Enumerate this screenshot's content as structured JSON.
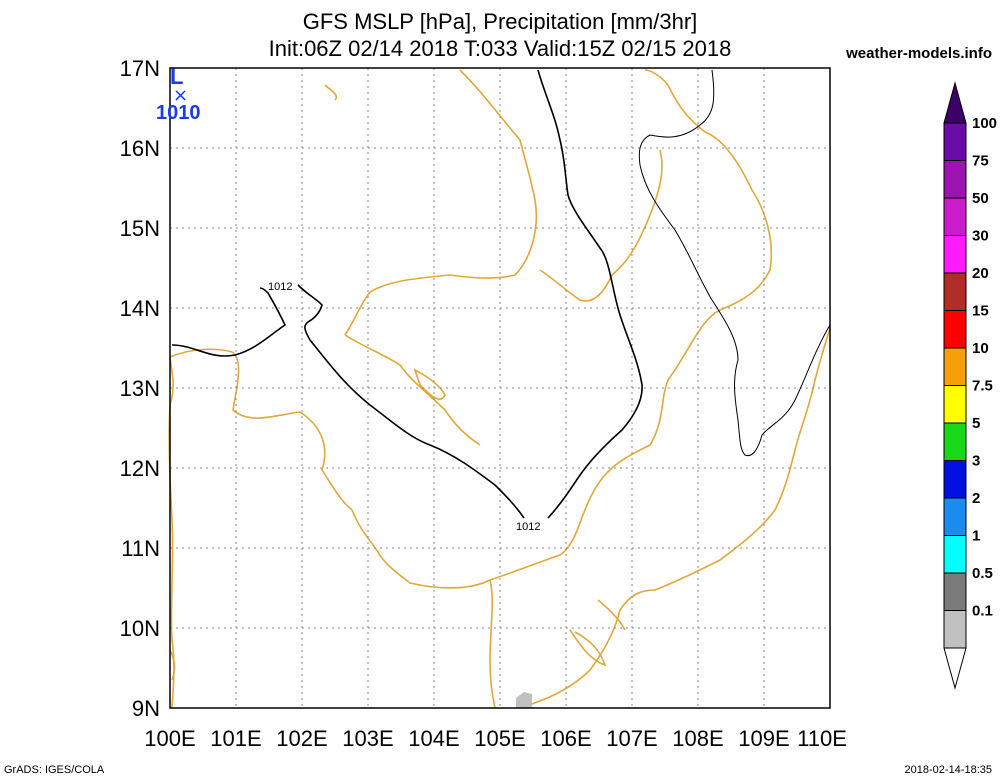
{
  "title_line1": "GFS MSLP [hPa], Precipitation [mm/3hr]",
  "title_line2": "Init:06Z 02/14 2018 T:033 Valid:15Z 02/15 2018",
  "site": "weather-models.info",
  "footer_left": "GrADS: IGES/COLA",
  "footer_right": "2018-02-14-18:35",
  "lat_labels": [
    "17N",
    "16N",
    "15N",
    "14N",
    "13N",
    "12N",
    "11N",
    "10N",
    "9N"
  ],
  "lon_labels": [
    "100E",
    "101E",
    "102E",
    "103E",
    "104E",
    "105E",
    "106E",
    "107E",
    "108E",
    "109E",
    "110E"
  ],
  "isobars": [
    {
      "label": "1012",
      "side": "west"
    },
    {
      "label": "1012",
      "side": "east"
    }
  ],
  "low_center": {
    "symbol": "L",
    "marker": "×",
    "value": "1010",
    "color": "#1a3be6"
  },
  "colorbar": [
    {
      "label": "100",
      "color": "#6a0da8"
    },
    {
      "label": "75",
      "color": "#9b14b0"
    },
    {
      "label": "50",
      "color": "#cc1bcc"
    },
    {
      "label": "30",
      "color": "#ff1aff"
    },
    {
      "label": "20",
      "color": "#b22d25"
    },
    {
      "label": "15",
      "color": "#ff0000"
    },
    {
      "label": "10",
      "color": "#f5a00a"
    },
    {
      "label": "7.5",
      "color": "#ffff00"
    },
    {
      "label": "5",
      "color": "#18d818"
    },
    {
      "label": "3",
      "color": "#0010e0"
    },
    {
      "label": "2",
      "color": "#1a8cf0"
    },
    {
      "label": "1",
      "color": "#00ffff"
    },
    {
      "label": "0.5",
      "color": "#7a7a7a"
    },
    {
      "label": "0.1",
      "color": "#c0c0c0"
    }
  ],
  "colors": {
    "coast": "#e0a83a",
    "isobar": "#000000",
    "grid": "#8a8a8a"
  }
}
